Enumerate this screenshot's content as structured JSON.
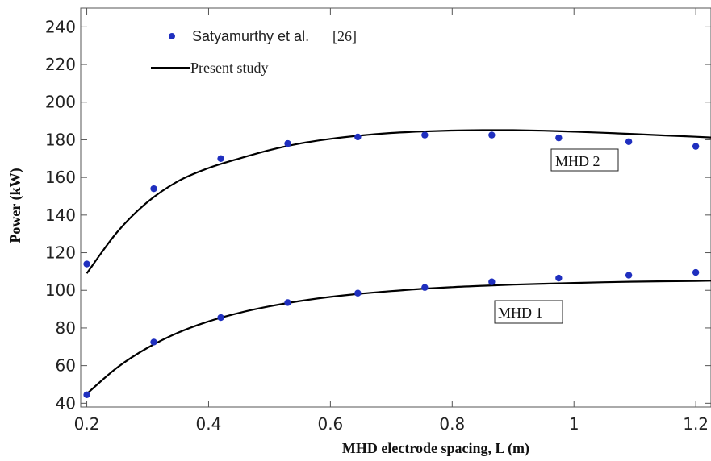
{
  "chart_data": {
    "type": "line",
    "xlabel": "MHD electrode spacing, L (m)",
    "ylabel": "Power (kW)",
    "xlim": [
      0.19,
      1.225
    ],
    "ylim": [
      38,
      250
    ],
    "xticks": [
      0.2,
      0.4,
      0.6,
      0.8,
      1.0,
      1.2
    ],
    "xtick_labels": [
      "0.2",
      "0.4",
      "0.6",
      "0.8",
      "1",
      "1.2"
    ],
    "yticks": [
      40,
      60,
      80,
      100,
      120,
      140,
      160,
      180,
      200,
      220,
      240
    ],
    "ytick_labels": [
      "40",
      "60",
      "80",
      "100",
      "120",
      "140",
      "160",
      "180",
      "200",
      "220",
      "240"
    ],
    "grid": false,
    "legend": {
      "position": "top-left",
      "entries": [
        {
          "label": "Satyamurthy et al.",
          "ref": "[26]",
          "marker": "dot"
        },
        {
          "label": "Present study",
          "marker": "line"
        }
      ]
    },
    "annotations": [
      {
        "text": "MHD 2",
        "x": 0.98,
        "y": 169
      },
      {
        "text": "MHD 1",
        "x": 0.87,
        "y": 94
      }
    ],
    "series": [
      {
        "name": "Satyamurthy et al.",
        "kind": "scatter",
        "color": "#1f2fbf",
        "x": [
          0.2,
          0.31,
          0.42,
          0.53,
          0.645,
          0.755,
          0.865,
          0.975,
          1.09,
          1.2
        ],
        "y": [
          114,
          154,
          170,
          178,
          181.5,
          182.5,
          182.5,
          181,
          179,
          176.5
        ]
      },
      {
        "name": "Satyamurthy et al.",
        "kind": "scatter",
        "color": "#1f2fbf",
        "x": [
          0.2,
          0.31,
          0.42,
          0.53,
          0.645,
          0.755,
          0.865,
          0.975,
          1.09,
          1.2
        ],
        "y": [
          44.5,
          72.5,
          85.5,
          93.5,
          98.5,
          101.5,
          104.5,
          106.5,
          108,
          109.5
        ]
      },
      {
        "name": "Present study",
        "kind": "line",
        "color": "#000000",
        "x": [
          0.2,
          0.25,
          0.3,
          0.35,
          0.4,
          0.45,
          0.5,
          0.55,
          0.6,
          0.65,
          0.7,
          0.75,
          0.8,
          0.85,
          0.9,
          0.95,
          1.0,
          1.05,
          1.1,
          1.15,
          1.2,
          1.225
        ],
        "y": [
          109,
          131,
          147,
          158,
          165,
          170,
          174.5,
          178,
          180.5,
          182.3,
          183.6,
          184.4,
          184.9,
          185.1,
          185.1,
          184.8,
          184.3,
          183.7,
          183.0,
          182.3,
          181.6,
          181.2
        ]
      },
      {
        "name": "Present study",
        "kind": "line",
        "color": "#000000",
        "x": [
          0.2,
          0.25,
          0.3,
          0.35,
          0.4,
          0.45,
          0.5,
          0.55,
          0.6,
          0.65,
          0.7,
          0.75,
          0.8,
          0.85,
          0.9,
          0.95,
          1.0,
          1.05,
          1.1,
          1.15,
          1.2,
          1.225
        ],
        "y": [
          45,
          59,
          69.5,
          77.5,
          83.5,
          88,
          91.5,
          94.3,
          96.5,
          98.2,
          99.6,
          100.8,
          101.7,
          102.4,
          103.0,
          103.5,
          103.9,
          104.3,
          104.6,
          104.8,
          105.0,
          105.1
        ]
      }
    ]
  }
}
